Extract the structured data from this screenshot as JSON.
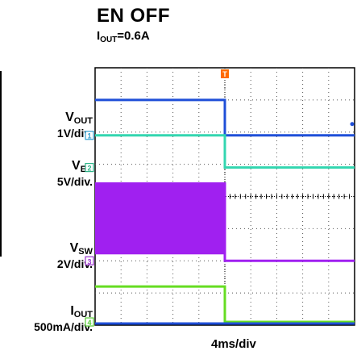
{
  "header": {
    "title": "EN OFF",
    "subtitle_main": "I",
    "subtitle_sub": "OUT",
    "subtitle_rest": "=0.6A"
  },
  "channels": {
    "vout": {
      "name": "V",
      "sub": "OUT",
      "scale": "1V/div.",
      "marker": "1",
      "color": "#2f9fd0"
    },
    "ven": {
      "name": "V",
      "sub": "EN",
      "scale": "5V/div.",
      "marker": "2",
      "color": "#2fb68a"
    },
    "vsw": {
      "name": "V",
      "sub": "SW",
      "scale": "2V/div.",
      "marker": "3",
      "color": "#9933cc"
    },
    "iout": {
      "name": "I",
      "sub": "OUT",
      "scale": "500mA/div.",
      "marker": "4",
      "color": "#55cc33"
    }
  },
  "trigger_marker": "T",
  "chart_data": {
    "type": "line",
    "x_unit": "div",
    "xlim": [
      0,
      10
    ],
    "ylim": [
      0,
      8
    ],
    "xlabel": "4ms/div",
    "trigger_x": 5.0,
    "series": [
      {
        "name": "VOUT",
        "color": "#1f4fd8",
        "x": [
          0,
          5.0,
          5.0,
          10
        ],
        "y": [
          7.0,
          7.0,
          5.9,
          5.9
        ]
      },
      {
        "name": "VEN",
        "color": "#33d6b0",
        "x": [
          0,
          5.0,
          5.0,
          10
        ],
        "y": [
          5.9,
          5.9,
          4.9,
          4.9
        ]
      },
      {
        "name": "VSW",
        "color": "#a020f0",
        "x": [
          0,
          5.0,
          5.0,
          10
        ],
        "y": [
          4.4,
          4.4,
          2.0,
          2.0
        ],
        "band_before": [
          4.4,
          2.2
        ]
      },
      {
        "name": "IOUT",
        "color": "#66dd22",
        "x": [
          0,
          5.0,
          5.0,
          10
        ],
        "y": [
          1.2,
          1.2,
          0.1,
          0.1
        ]
      },
      {
        "name": "baseline",
        "color": "#1f4fd8",
        "x": [
          0,
          10
        ],
        "y": [
          0.05,
          0.05
        ]
      }
    ]
  }
}
